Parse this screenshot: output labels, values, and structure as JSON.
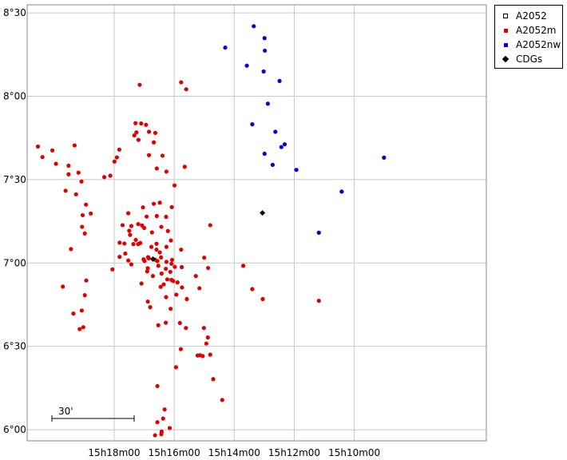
{
  "chart_data": {
    "type": "scatter",
    "title": "",
    "xlabel": "",
    "ylabel": "",
    "x_axis": {
      "unit": "minutes of right ascension",
      "range_min": [
        1092.9,
        1077.6
      ],
      "ticks": [
        {
          "value_min": 1090,
          "label": "15h18m00"
        },
        {
          "value_min": 1088,
          "label": "15h16m00"
        },
        {
          "value_min": 1086,
          "label": "15h14m00"
        },
        {
          "value_min": 1084,
          "label": "15h12m00"
        },
        {
          "value_min": 1082,
          "label": "15h10m00"
        }
      ]
    },
    "y_axis": {
      "unit": "arcminutes of declination",
      "range_arcmin": [
        356.0,
        512.9
      ],
      "ticks": [
        {
          "value_arcmin": 360,
          "label": "6°00"
        },
        {
          "value_arcmin": 390,
          "label": "6°30"
        },
        {
          "value_arcmin": 420,
          "label": "7°00"
        },
        {
          "value_arcmin": 450,
          "label": "7°30"
        },
        {
          "value_arcmin": 480,
          "label": "8°00"
        },
        {
          "value_arcmin": 510,
          "label": "8°30"
        }
      ]
    },
    "grid": true,
    "legend_position": "top-right, outside plot",
    "scale_bar": {
      "label": "30'",
      "length_arcmin": 30
    },
    "series": [
      {
        "name": "A2052",
        "marker": "open-square",
        "color": "#000000",
        "points": []
      },
      {
        "name": "A2052m",
        "marker": "square",
        "color": "#e00000",
        "points": [
          [
            1092.54,
            461.9
          ],
          [
            1092.39,
            458.1
          ],
          [
            1092.06,
            460.5
          ],
          [
            1091.94,
            455.7
          ],
          [
            1091.32,
            462.3
          ],
          [
            1091.52,
            455.0
          ],
          [
            1091.19,
            452.5
          ],
          [
            1091.09,
            449.3
          ],
          [
            1091.62,
            446.0
          ],
          [
            1091.52,
            451.9
          ],
          [
            1091.27,
            444.7
          ],
          [
            1091.05,
            437.2
          ],
          [
            1090.94,
            441.0
          ],
          [
            1090.78,
            437.8
          ],
          [
            1090.98,
            430.6
          ],
          [
            1091.07,
            433.0
          ],
          [
            1091.44,
            425.0
          ],
          [
            1091.71,
            411.5
          ],
          [
            1090.06,
            417.7
          ],
          [
            1091.36,
            401.8
          ],
          [
            1090.98,
            408.4
          ],
          [
            1091.08,
            402.9
          ],
          [
            1090.93,
            413.7
          ],
          [
            1091.03,
            396.9
          ],
          [
            1091.15,
            396.2
          ],
          [
            1090.33,
            450.9
          ],
          [
            1090.13,
            451.4
          ],
          [
            1089.91,
            458.0
          ],
          [
            1089.99,
            456.5
          ],
          [
            1089.83,
            460.8
          ],
          [
            1089.15,
            484.1
          ],
          [
            1088.94,
            469.7
          ],
          [
            1089.33,
            465.9
          ],
          [
            1089.19,
            464.3
          ],
          [
            1089.26,
            467.0
          ],
          [
            1089.29,
            470.3
          ],
          [
            1089.1,
            470.2
          ],
          [
            1088.84,
            467.2
          ],
          [
            1088.63,
            466.8
          ],
          [
            1088.84,
            458.8
          ],
          [
            1088.68,
            463.4
          ],
          [
            1088.58,
            454.0
          ],
          [
            1088.39,
            458.6
          ],
          [
            1088.26,
            452.9
          ],
          [
            1088.08,
            440.1
          ],
          [
            1087.99,
            447.9
          ],
          [
            1087.65,
            454.6
          ],
          [
            1087.77,
            485.0
          ],
          [
            1087.6,
            482.5
          ],
          [
            1089.53,
            420.9
          ],
          [
            1089.47,
            430.1
          ],
          [
            1089.63,
            423.4
          ],
          [
            1089.82,
            422.2
          ],
          [
            1089.82,
            427.3
          ],
          [
            1089.72,
            433.6
          ],
          [
            1089.66,
            427.0
          ],
          [
            1089.28,
            428.3
          ],
          [
            1089.07,
            433.5
          ],
          [
            1089.04,
            440.0
          ],
          [
            1088.92,
            436.7
          ],
          [
            1088.58,
            436.9
          ],
          [
            1088.59,
            424.8
          ],
          [
            1088.68,
            441.3
          ],
          [
            1088.48,
            441.7
          ],
          [
            1088.27,
            436.6
          ],
          [
            1088.43,
            433.0
          ],
          [
            1089.2,
            426.8
          ],
          [
            1089.2,
            434.0
          ],
          [
            1089.5,
            431.6
          ],
          [
            1089.53,
            437.9
          ],
          [
            1089.36,
            426.8
          ],
          [
            1089.43,
            433.3
          ],
          [
            1089.0,
            432.6
          ],
          [
            1088.74,
            431.0
          ],
          [
            1088.76,
            425.8
          ],
          [
            1088.56,
            420.7
          ],
          [
            1088.21,
            431.5
          ],
          [
            1088.11,
            428.1
          ],
          [
            1088.09,
            419.7
          ],
          [
            1088.9,
            417.0
          ],
          [
            1089.09,
            412.6
          ],
          [
            1089.13,
            427.2
          ],
          [
            1088.85,
            421.7
          ],
          [
            1089.43,
            419.5
          ],
          [
            1089.02,
            421.3
          ],
          [
            1088.71,
            415.3
          ],
          [
            1088.87,
            422.1
          ],
          [
            1088.99,
            420.7
          ],
          [
            1088.88,
            418.1
          ],
          [
            1088.44,
            422.0
          ],
          [
            1088.64,
            421.2
          ],
          [
            1088.48,
            423.8
          ],
          [
            1088.26,
            425.8
          ],
          [
            1088.59,
            426.9
          ],
          [
            1088.28,
            417.9
          ],
          [
            1088.42,
            416.2
          ],
          [
            1088.45,
            411.4
          ],
          [
            1088.53,
            419.0
          ],
          [
            1088.35,
            412.3
          ],
          [
            1088.13,
            416.8
          ],
          [
            1088.27,
            407.7
          ],
          [
            1088.23,
            414.1
          ],
          [
            1088.07,
            421.1
          ],
          [
            1087.98,
            418.6
          ],
          [
            1087.75,
            418.5
          ],
          [
            1087.77,
            424.8
          ],
          [
            1088.26,
            420.4
          ],
          [
            1088.12,
            403.5
          ],
          [
            1087.74,
            411.2
          ],
          [
            1087.93,
            408.6
          ],
          [
            1087.89,
            413.0
          ],
          [
            1088.53,
            397.6
          ],
          [
            1088.28,
            398.5
          ],
          [
            1088.8,
            404.1
          ],
          [
            1088.88,
            406.1
          ],
          [
            1088.09,
            413.9
          ],
          [
            1088.03,
            413.5
          ],
          [
            1087.58,
            407.0
          ],
          [
            1087.61,
            396.6
          ],
          [
            1087.81,
            398.4
          ],
          [
            1087.78,
            389.0
          ],
          [
            1087.94,
            382.5
          ],
          [
            1087.28,
            415.3
          ],
          [
            1087.16,
            410.9
          ],
          [
            1087.0,
            421.9
          ],
          [
            1086.87,
            418.2
          ],
          [
            1087.01,
            396.6
          ],
          [
            1086.88,
            393.2
          ],
          [
            1086.8,
            387.0
          ],
          [
            1086.7,
            378.2
          ],
          [
            1087.22,
            386.7
          ],
          [
            1087.14,
            386.8
          ],
          [
            1087.05,
            386.5
          ],
          [
            1086.93,
            391.0
          ],
          [
            1086.8,
            433.6
          ],
          [
            1085.7,
            419.0
          ],
          [
            1086.4,
            370.7
          ],
          [
            1088.32,
            367.3
          ],
          [
            1088.56,
            362.7
          ],
          [
            1088.43,
            358.4
          ],
          [
            1088.42,
            359.3
          ],
          [
            1088.64,
            358.0
          ],
          [
            1088.37,
            364.0
          ],
          [
            1088.15,
            360.6
          ],
          [
            1088.56,
            375.7
          ],
          [
            1085.4,
            410.6
          ],
          [
            1085.05,
            407.0
          ],
          [
            1083.18,
            406.4
          ]
        ]
      },
      {
        "name": "A2052nw",
        "marker": "square",
        "color": "#0000e0",
        "points": [
          [
            1086.3,
            497.5
          ],
          [
            1085.35,
            505.2
          ],
          [
            1084.99,
            500.9
          ],
          [
            1084.98,
            496.4
          ],
          [
            1085.58,
            491.0
          ],
          [
            1085.02,
            488.9
          ],
          [
            1084.88,
            477.3
          ],
          [
            1084.49,
            485.5
          ],
          [
            1085.4,
            469.9
          ],
          [
            1084.32,
            462.7
          ],
          [
            1084.63,
            467.2
          ],
          [
            1084.43,
            461.7
          ],
          [
            1084.99,
            459.3
          ],
          [
            1084.72,
            455.3
          ],
          [
            1083.93,
            453.5
          ],
          [
            1082.42,
            445.7
          ],
          [
            1083.18,
            430.9
          ],
          [
            1081.01,
            457.9
          ]
        ]
      },
      {
        "name": "CDGs",
        "marker": "diamond",
        "color": "#000000",
        "points": [
          [
            1088.71,
            421.4
          ],
          [
            1085.06,
            438.0
          ]
        ]
      }
    ]
  }
}
